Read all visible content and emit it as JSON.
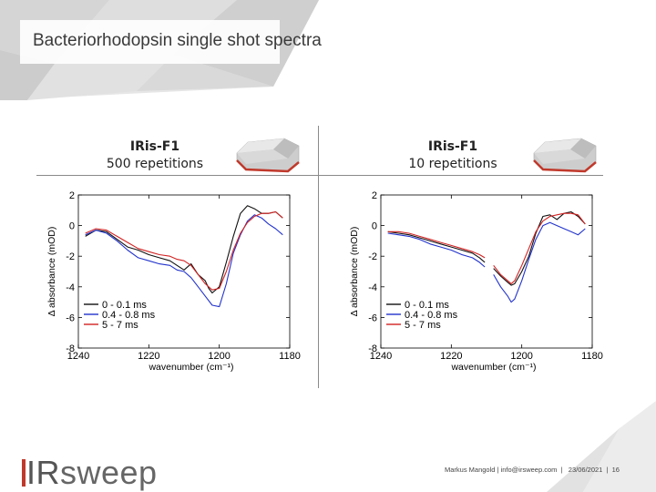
{
  "slide": {
    "title": "Bacteriorhodopsin single shot spectra"
  },
  "panels": [
    {
      "name": "IRis-F1",
      "subtitle": "500 repetitions"
    },
    {
      "name": "IRis-F1",
      "subtitle": "10 repetitions"
    }
  ],
  "footer": {
    "author": "Markus Mangold",
    "email": "info@irsweep.com",
    "date": "23/06/2021",
    "page": "16",
    "sep": "|"
  },
  "logo": {
    "ir": "IR",
    "rest": "sweep"
  },
  "colors": {
    "black": "#111111",
    "blue": "#2233cc",
    "red": "#d22222",
    "accent": "#c0392b"
  },
  "chart_data": [
    {
      "type": "line",
      "title": "",
      "xlabel": "wavenumber (cm⁻¹)",
      "ylabel": "Δ absorbance (mOD)",
      "xlim": [
        1240,
        1180
      ],
      "ylim": [
        -8,
        2
      ],
      "xticks": [
        1240,
        1220,
        1200,
        1180
      ],
      "yticks": [
        2,
        0,
        -2,
        -4,
        -6,
        -8
      ],
      "legend": [
        "0 - 0.1 ms",
        "0.4 - 0.8 ms",
        "5 - 7 ms"
      ],
      "series": [
        {
          "name": "0 - 0.1 ms",
          "color": "#111111",
          "x": [
            1238,
            1235,
            1232,
            1229,
            1226,
            1223,
            1220,
            1217,
            1214,
            1212,
            1210,
            1208,
            1206,
            1204,
            1203,
            1202,
            1200,
            1198,
            1196,
            1194,
            1192,
            1190,
            1188,
            1186,
            1184,
            1182
          ],
          "y": [
            -0.7,
            -0.3,
            -0.4,
            -0.9,
            -1.4,
            -1.6,
            -1.9,
            -2.1,
            -2.3,
            -2.6,
            -2.9,
            -2.5,
            -3.2,
            -3.6,
            -4.1,
            -4.4,
            -4.0,
            -2.4,
            -0.7,
            0.8,
            1.3,
            1.1,
            0.8,
            0.8,
            0.9,
            0.5
          ]
        },
        {
          "name": "0.4 - 0.8 ms",
          "color": "#2233cc",
          "x": [
            1238,
            1235,
            1232,
            1229,
            1226,
            1223,
            1220,
            1217,
            1214,
            1212,
            1210,
            1208,
            1206,
            1204,
            1202,
            1200,
            1198,
            1196,
            1194,
            1192,
            1190,
            1188,
            1186,
            1184,
            1182
          ],
          "y": [
            -0.6,
            -0.3,
            -0.5,
            -1.0,
            -1.6,
            -2.1,
            -2.3,
            -2.5,
            -2.6,
            -2.9,
            -3.0,
            -3.4,
            -4.0,
            -4.6,
            -5.2,
            -5.3,
            -3.8,
            -1.8,
            -0.6,
            0.3,
            0.7,
            0.5,
            0.1,
            -0.2,
            -0.6
          ]
        },
        {
          "name": "5 - 7 ms",
          "color": "#d22222",
          "x": [
            1238,
            1235,
            1232,
            1229,
            1226,
            1223,
            1220,
            1217,
            1214,
            1212,
            1210,
            1208,
            1206,
            1204,
            1202,
            1200,
            1198,
            1196,
            1194,
            1192,
            1190,
            1188,
            1186,
            1184,
            1182
          ],
          "y": [
            -0.5,
            -0.2,
            -0.3,
            -0.7,
            -1.1,
            -1.5,
            -1.7,
            -1.9,
            -2.0,
            -2.2,
            -2.3,
            -2.6,
            -3.2,
            -3.8,
            -4.2,
            -4.1,
            -3.0,
            -1.6,
            -0.5,
            0.2,
            0.6,
            0.8,
            0.8,
            0.9,
            0.5
          ]
        }
      ]
    },
    {
      "type": "line",
      "title": "",
      "xlabel": "wavenumber (cm⁻¹)",
      "ylabel": "Δ absorbance (mOD)",
      "xlim": [
        1240,
        1180
      ],
      "ylim": [
        -8,
        2
      ],
      "xticks": [
        1240,
        1220,
        1200,
        1180
      ],
      "yticks": [
        2,
        0,
        -2,
        -4,
        -6,
        -8
      ],
      "legend": [
        "0 - 0.1 ms",
        "0.4 - 0.8 ms",
        "5 - 7 ms"
      ],
      "series": [
        {
          "name": "0 - 0.1 ms",
          "color": "#111111",
          "x": [
            1238,
            1235,
            1232,
            1229,
            1226,
            1223,
            1220,
            1217,
            1214,
            1212,
            1210.5,
            null,
            1208,
            1206,
            1204,
            1203,
            1202,
            1200,
            1198,
            1196,
            1194,
            1192,
            1190,
            1188,
            1186,
            1184,
            1182
          ],
          "y": [
            -0.4,
            -0.5,
            -0.6,
            -0.8,
            -1.0,
            -1.2,
            -1.4,
            -1.6,
            -1.8,
            -2.1,
            -2.4,
            null,
            -2.8,
            -3.3,
            -3.7,
            -3.9,
            -3.8,
            -3.0,
            -2.0,
            -0.5,
            0.6,
            0.7,
            0.4,
            0.8,
            0.9,
            0.6,
            0.1
          ]
        },
        {
          "name": "0.4 - 0.8 ms",
          "color": "#2233cc",
          "x": [
            1238,
            1235,
            1232,
            1229,
            1226,
            1223,
            1220,
            1217,
            1214,
            1212,
            1210.5,
            null,
            1208,
            1206,
            1204,
            1203,
            1202,
            1200,
            1198,
            1196,
            1194,
            1192,
            1190,
            1188,
            1186,
            1184,
            1182
          ],
          "y": [
            -0.5,
            -0.6,
            -0.7,
            -0.9,
            -1.2,
            -1.4,
            -1.6,
            -1.9,
            -2.1,
            -2.4,
            -2.7,
            null,
            -3.2,
            -4.0,
            -4.6,
            -5.0,
            -4.8,
            -3.6,
            -2.2,
            -0.9,
            0.0,
            0.2,
            0.0,
            -0.2,
            -0.4,
            -0.6,
            -0.2
          ]
        },
        {
          "name": "5 - 7 ms",
          "color": "#d22222",
          "x": [
            1238,
            1235,
            1232,
            1229,
            1226,
            1223,
            1220,
            1217,
            1214,
            1212,
            1210.5,
            null,
            1208,
            1206,
            1204,
            1203,
            1202,
            1200,
            1198,
            1196,
            1194,
            1192,
            1190,
            1188,
            1186,
            1184,
            1182
          ],
          "y": [
            -0.4,
            -0.4,
            -0.5,
            -0.7,
            -0.9,
            -1.1,
            -1.3,
            -1.5,
            -1.7,
            -1.9,
            -2.1,
            null,
            -2.6,
            -3.2,
            -3.6,
            -3.8,
            -3.6,
            -2.6,
            -1.5,
            -0.4,
            0.3,
            0.6,
            0.7,
            0.8,
            0.8,
            0.7,
            0.1
          ]
        }
      ]
    }
  ]
}
